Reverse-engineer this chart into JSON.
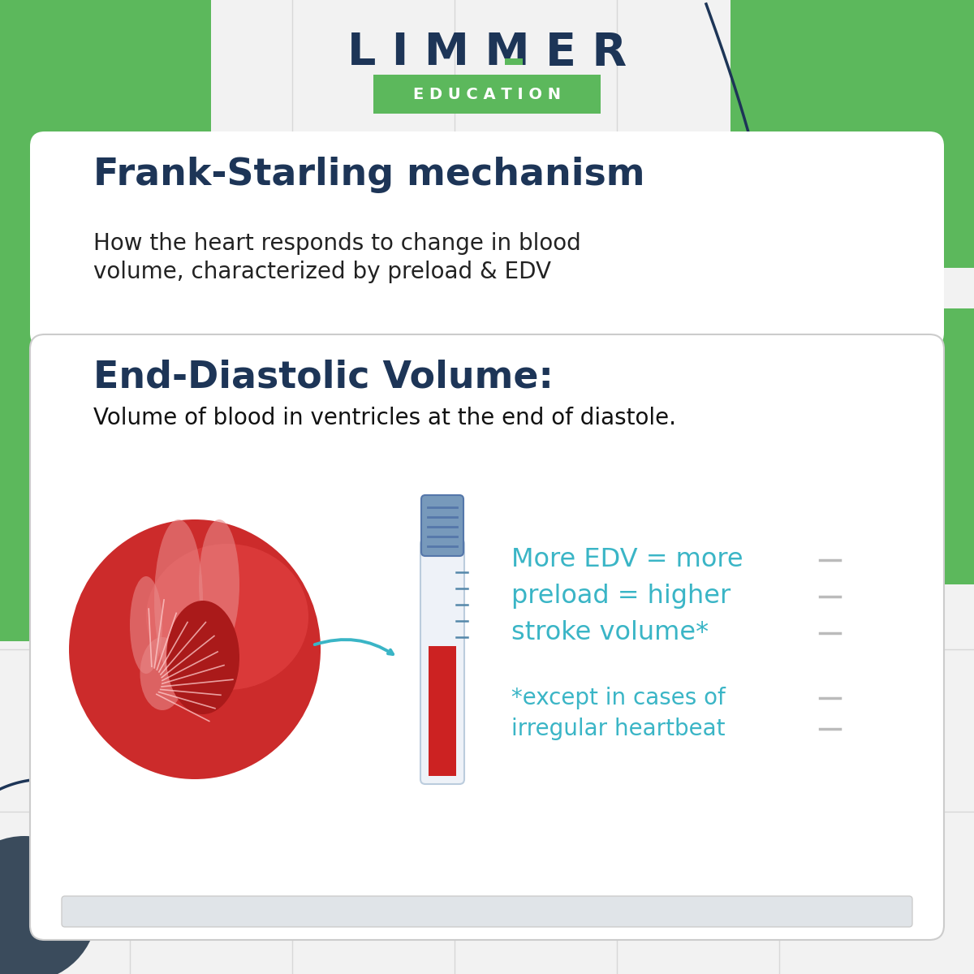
{
  "bg_color": "#f2f2f2",
  "grid_color": "#d8d8d8",
  "green_blob_color": "#5cb85c",
  "dark_navy": "#1d3557",
  "green_education_bg": "#5cb85c",
  "teal_text": "#3ab5c6",
  "card_bg": "#ffffff",
  "logo_text": "L I M M E R",
  "edu_text": "E D U C A T I O N",
  "title1": "Frank-Starling mechanism",
  "subtitle1_line1": "How the heart responds to change in blood",
  "subtitle1_line2": "volume, characterized by preload & EDV",
  "title2": "End-Diastolic Volume:",
  "subtitle2": "Volume of blood in ventricles at the end of diastole.",
  "text_main_line1": "More EDV = more",
  "text_main_line2": "preload = higher",
  "text_main_line3": "stroke volume*",
  "text_note_line1": "*except in cases of",
  "text_note_line2": "irregular heartbeat"
}
